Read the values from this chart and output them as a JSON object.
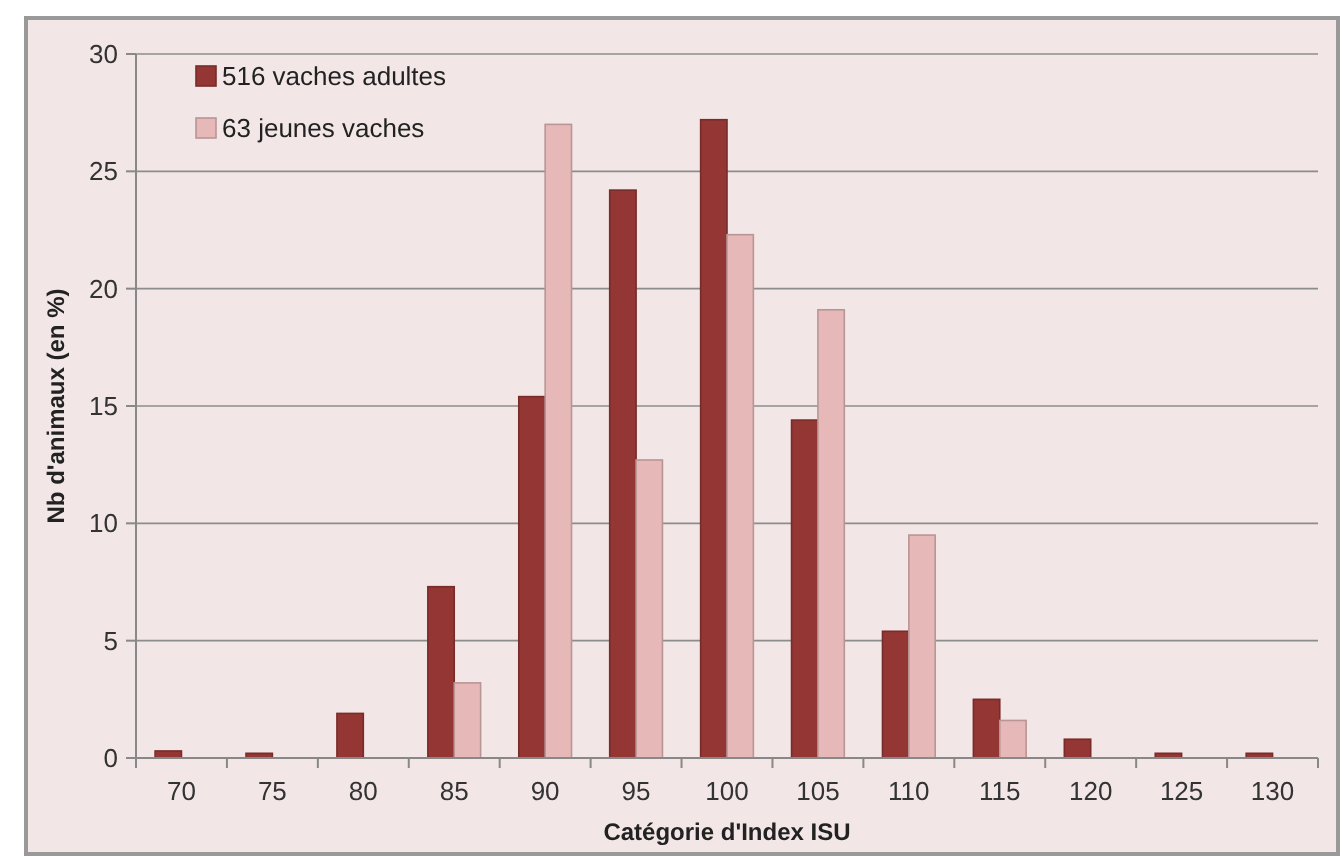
{
  "chart_data": {
    "type": "bar",
    "xlabel": "Catégorie d'Index ISU",
    "ylabel": "Nb d'animaux (en %)",
    "categories": [
      "70",
      "75",
      "80",
      "85",
      "90",
      "95",
      "100",
      "105",
      "110",
      "115",
      "120",
      "125",
      "130"
    ],
    "series": [
      {
        "name": "516 vaches adultes",
        "color": "#943634",
        "values": [
          0.3,
          0.2,
          1.9,
          7.3,
          15.4,
          24.2,
          27.2,
          14.4,
          5.4,
          2.5,
          0.8,
          0.2,
          0.2
        ]
      },
      {
        "name": "63 jeunes vaches",
        "color": "#e6b9b8",
        "values": [
          0,
          0,
          0,
          3.2,
          27.0,
          12.7,
          22.3,
          19.1,
          9.5,
          1.6,
          0,
          0,
          0
        ]
      }
    ],
    "ylim": [
      0,
      30
    ],
    "yticks": [
      0,
      5,
      10,
      15,
      20,
      25,
      30
    ],
    "grid": "y",
    "legend": "top left"
  }
}
